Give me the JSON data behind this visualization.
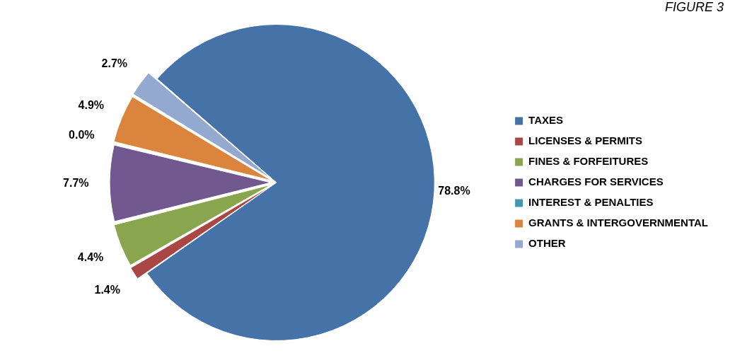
{
  "chart_data": {
    "type": "pie",
    "title": "FIGURE 3",
    "categories": [
      "TAXES",
      "LICENSES & PERMITS",
      "FINES & FORFEITURES",
      "CHARGES FOR SERVICES",
      "INTEREST & PENALTIES",
      "GRANTS & INTERGOVERNMENTAL",
      "OTHER"
    ],
    "values": [
      78.8,
      1.4,
      4.4,
      7.7,
      0.0,
      4.9,
      2.7
    ],
    "value_labels": [
      "78.8%",
      "1.4%",
      "4.4%",
      "7.7%",
      "0.0%",
      "4.9%",
      "2.7%"
    ],
    "colors": [
      "#4572a7",
      "#aa4643",
      "#89a54e",
      "#71588f",
      "#4198af",
      "#db843d",
      "#93a9cf"
    ],
    "legend": "right"
  }
}
